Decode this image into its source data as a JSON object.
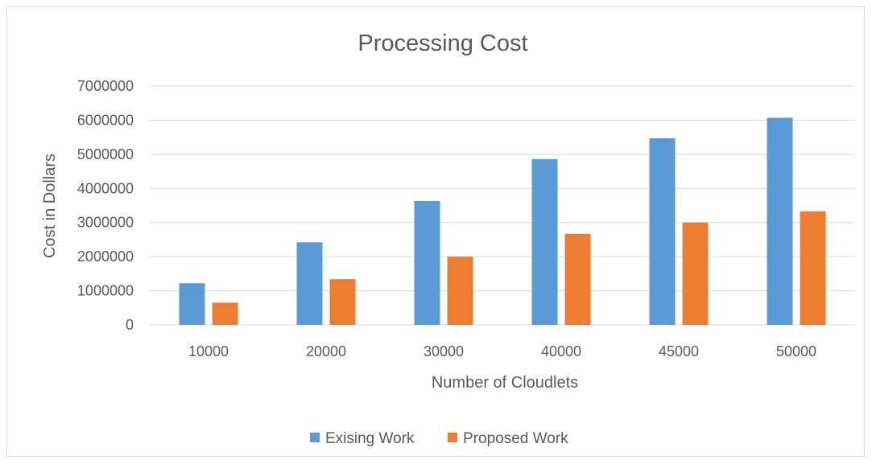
{
  "chart_data": {
    "type": "bar",
    "title": "Processing Cost",
    "xlabel": "Number of Cloudlets",
    "ylabel": "Cost in Dollars",
    "categories": [
      "10000",
      "20000",
      "30000",
      "40000",
      "45000",
      "50000"
    ],
    "ylim": [
      0,
      7000000
    ],
    "yticks": [
      "0",
      "1000000",
      "2000000",
      "3000000",
      "4000000",
      "5000000",
      "6000000",
      "7000000"
    ],
    "grid": true,
    "legend_position": "bottom",
    "series": [
      {
        "name": "Exising Work",
        "color": "#5b9bd5",
        "values": [
          1220000,
          2420000,
          3630000,
          4860000,
          5470000,
          6070000
        ]
      },
      {
        "name": "Proposed Work",
        "color": "#ed7d31",
        "values": [
          650000,
          1340000,
          2000000,
          2670000,
          3000000,
          3330000
        ]
      }
    ]
  }
}
